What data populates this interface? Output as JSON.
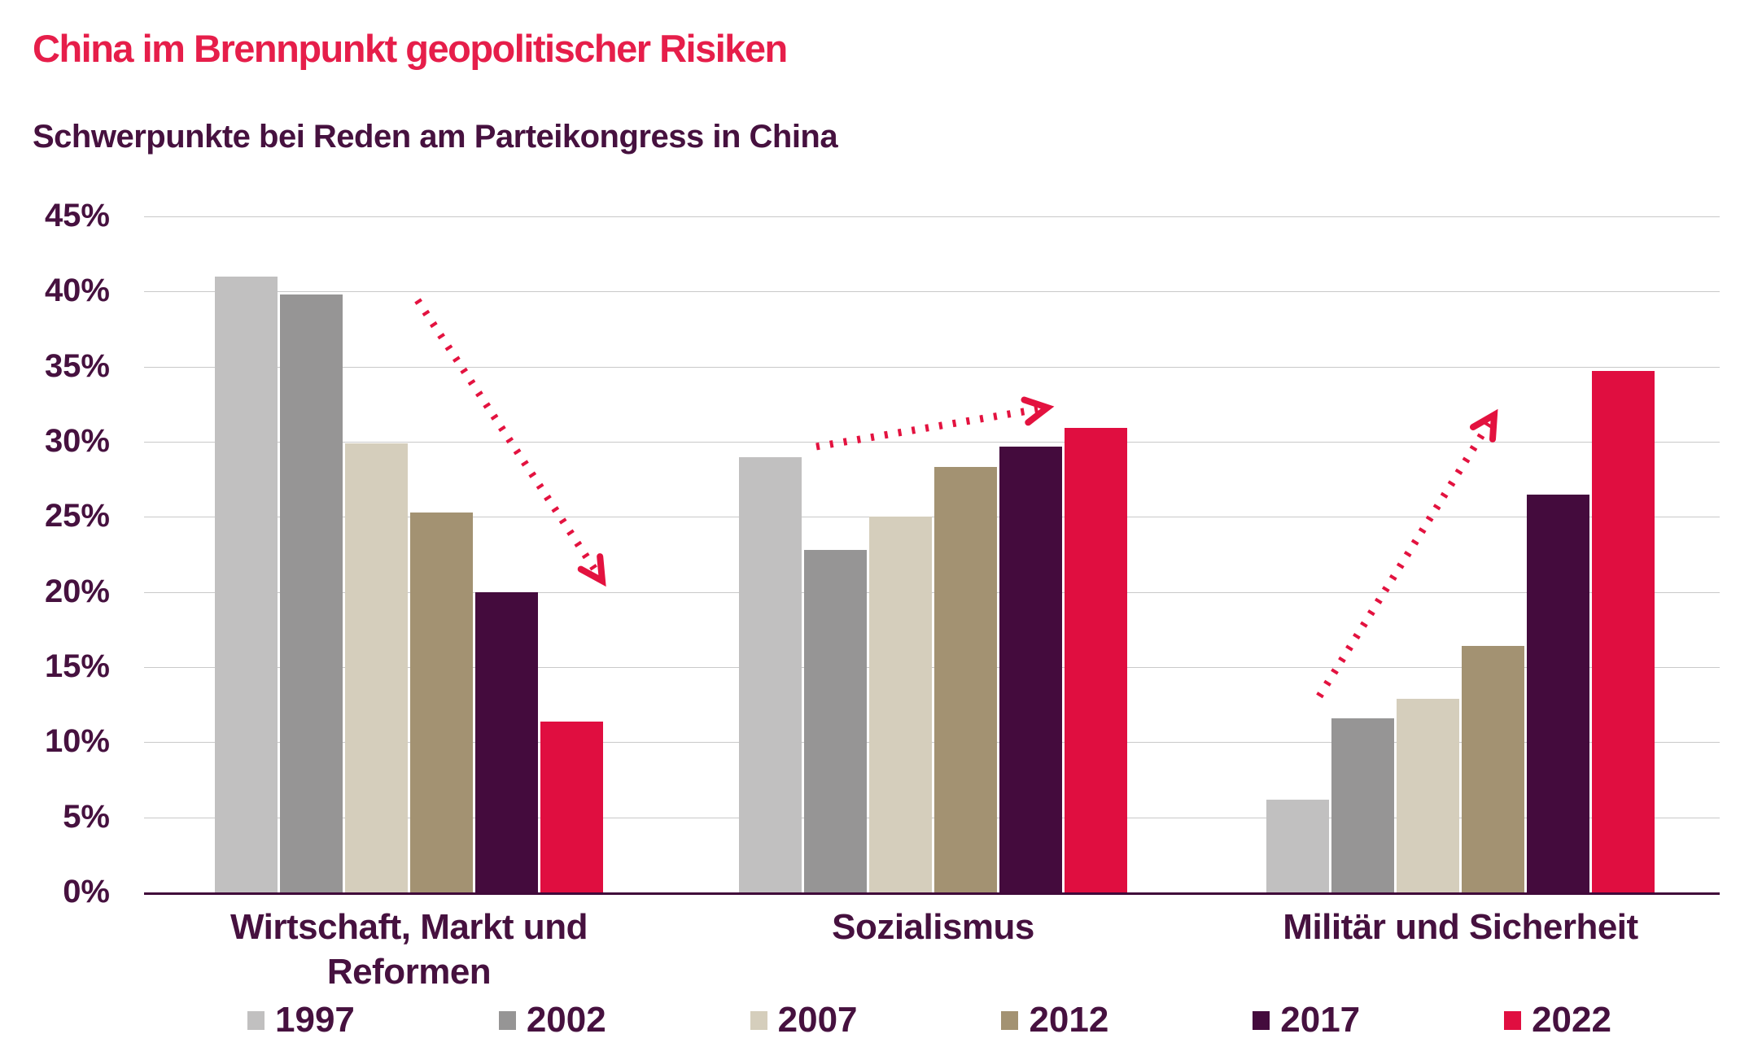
{
  "title": "China im Brennpunkt geopolitischer Risiken",
  "subtitle": "Schwerpunkte bei Reden am Parteikongress in China",
  "chart_data": {
    "type": "bar",
    "title": "China im Brennpunkt geopolitischer Risiken",
    "subtitle": "Schwerpunkte bei Reden am Parteikongress in China",
    "categories": [
      "Wirtschaft, Markt und Reformen",
      "Sozialismus",
      "Militär und Sicherheit"
    ],
    "unit": "%",
    "ylim": [
      0,
      45
    ],
    "grid": true,
    "legend_position": "bottom",
    "yticks": {
      "values": [
        0,
        5,
        10,
        15,
        20,
        25,
        30,
        35,
        40,
        45
      ],
      "labels": [
        "0%",
        "5%",
        "10%",
        "15%",
        "20%",
        "25%",
        "30%",
        "35%",
        "40%",
        "45%"
      ]
    },
    "series": [
      {
        "name": "1997",
        "color": "#c1c0c0",
        "values": [
          41.0,
          29.0,
          6.2
        ]
      },
      {
        "name": "2002",
        "color": "#969595",
        "values": [
          39.8,
          22.8,
          11.6
        ]
      },
      {
        "name": "2007",
        "color": "#d5cebc",
        "values": [
          29.9,
          25.0,
          12.9
        ]
      },
      {
        "name": "2012",
        "color": "#a39272",
        "values": [
          25.3,
          28.3,
          16.4
        ]
      },
      {
        "name": "2017",
        "color": "#440b3d",
        "values": [
          20.0,
          29.7,
          26.5
        ]
      },
      {
        "name": "2022",
        "color": "#e00e40",
        "values": [
          11.4,
          30.9,
          34.7
        ]
      }
    ],
    "annotations": [
      {
        "name": "trend-arrow-down-wirtschaft",
        "direction": "down",
        "color": "#e3123f",
        "from": [
          513,
          369
        ],
        "to": [
          740,
          714
        ]
      },
      {
        "name": "trend-arrow-up-sozialismus",
        "direction": "up",
        "color": "#e3123f",
        "from": [
          1003,
          549
        ],
        "to": [
          1287,
          501
        ]
      },
      {
        "name": "trend-arrow-up-militaer",
        "direction": "up",
        "color": "#e3123f",
        "from": [
          1621,
          856
        ],
        "to": [
          1836,
          510
        ]
      }
    ]
  },
  "colors": {
    "title": "#e61e4a",
    "text": "#46113f",
    "gridline": "#c9c9c9",
    "axis": "#40093a",
    "background": "#ffffff"
  }
}
